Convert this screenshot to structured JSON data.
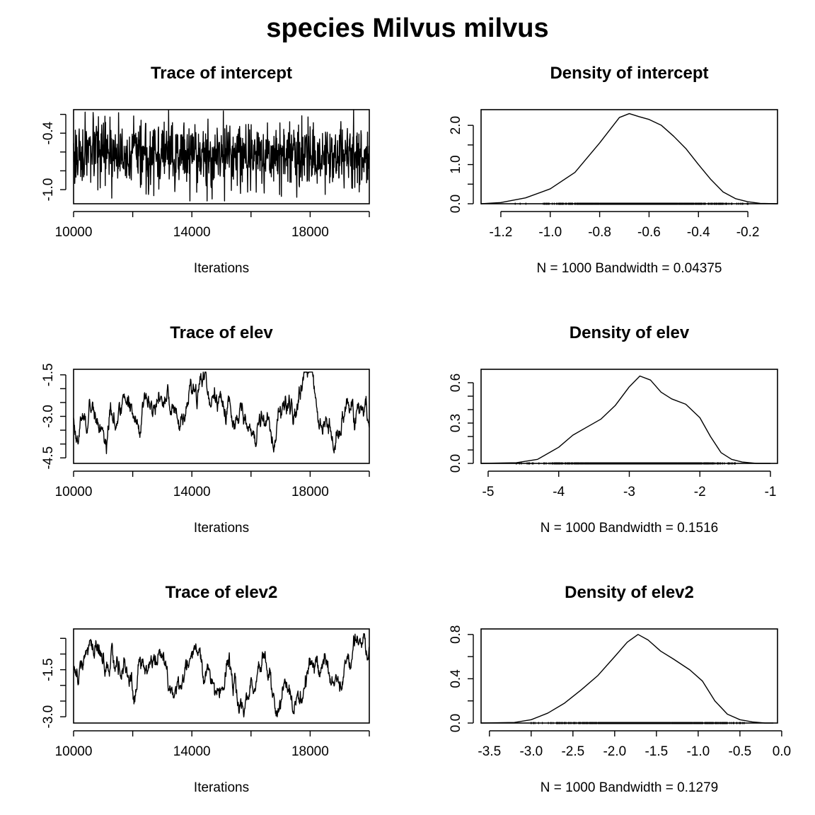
{
  "figure_title": "species Milvus milvus",
  "chart_data": [
    {
      "id": "trace-intercept",
      "type": "line",
      "title": "Trace of intercept",
      "xlabel": "Iterations",
      "xlim": [
        10000,
        20000
      ],
      "ylim": [
        -1.15,
        -0.15
      ],
      "xticks": [
        10000,
        12000,
        14000,
        16000,
        18000,
        20000
      ],
      "xtick_labels": [
        "10000",
        "",
        "14000",
        "",
        "18000",
        ""
      ],
      "yticks": [
        -1.0,
        -0.8,
        -0.6,
        -0.4,
        -0.2
      ],
      "ytick_labels": [
        "-1.0",
        "",
        "",
        "-0.4",
        ""
      ],
      "trace": {
        "n": 1000,
        "mean": -0.63,
        "sd": 0.17,
        "ar": 0.05,
        "min": -1.12,
        "max": -0.15
      }
    },
    {
      "id": "density-intercept",
      "type": "line",
      "title": "Density of intercept",
      "xlabel": "N = 1000   Bandwidth = 0.04375",
      "xlim": [
        -1.28,
        -0.08
      ],
      "ylim": [
        0,
        2.4
      ],
      "xticks": [
        -1.2,
        -1.0,
        -0.8,
        -0.6,
        -0.4,
        -0.2
      ],
      "xtick_labels": [
        "-1.2",
        "-1.0",
        "-0.8",
        "-0.6",
        "-0.4",
        "-0.2"
      ],
      "yticks": [
        0,
        0.5,
        1.0,
        1.5,
        2.0
      ],
      "ytick_labels": [
        "0.0",
        "",
        "1.0",
        "",
        "2.0"
      ],
      "curve": {
        "x": [
          -1.28,
          -1.2,
          -1.1,
          -1.0,
          -0.9,
          -0.8,
          -0.72,
          -0.68,
          -0.64,
          -0.6,
          -0.55,
          -0.5,
          -0.45,
          -0.4,
          -0.35,
          -0.3,
          -0.25,
          -0.2,
          -0.15,
          -0.08
        ],
        "y": [
          0.0,
          0.03,
          0.15,
          0.38,
          0.8,
          1.55,
          2.2,
          2.3,
          2.22,
          2.15,
          2.0,
          1.72,
          1.4,
          1.0,
          0.62,
          0.3,
          0.13,
          0.05,
          0.01,
          0.0
        ]
      },
      "rug": {
        "n": 1000,
        "mean": -0.63,
        "sd": 0.16,
        "min": -1.2,
        "max": -0.2
      }
    },
    {
      "id": "trace-elev",
      "type": "line",
      "title": "Trace of elev",
      "xlabel": "Iterations",
      "xlim": [
        10000,
        20000
      ],
      "ylim": [
        -4.7,
        -1.3
      ],
      "xticks": [
        10000,
        12000,
        14000,
        16000,
        18000,
        20000
      ],
      "xtick_labels": [
        "10000",
        "",
        "14000",
        "",
        "18000",
        ""
      ],
      "yticks": [
        -4.5,
        -4.0,
        -3.5,
        -3.0,
        -2.5,
        -2.0,
        -1.5
      ],
      "ytick_labels": [
        "-4.5",
        "",
        "",
        "-3.0",
        "",
        "",
        "-1.5"
      ],
      "trace": {
        "n": 1000,
        "mean": -2.9,
        "sd": 0.6,
        "ar": 0.97,
        "min": -4.6,
        "max": -1.4
      }
    },
    {
      "id": "density-elev",
      "type": "line",
      "title": "Density of elev",
      "xlabel": "N = 1000   Bandwidth = 0.1516",
      "xlim": [
        -5.1,
        -0.9
      ],
      "ylim": [
        0,
        0.7
      ],
      "xticks": [
        -5,
        -4,
        -3,
        -2,
        -1
      ],
      "xtick_labels": [
        "-5",
        "-4",
        "-3",
        "-2",
        "-1"
      ],
      "yticks": [
        0,
        0.1,
        0.2,
        0.3,
        0.4,
        0.5,
        0.6
      ],
      "ytick_labels": [
        "0.0",
        "",
        "",
        "0.3",
        "",
        "",
        "0.6"
      ],
      "curve": {
        "x": [
          -5.1,
          -4.6,
          -4.3,
          -4.0,
          -3.8,
          -3.6,
          -3.4,
          -3.2,
          -3.0,
          -2.85,
          -2.7,
          -2.55,
          -2.4,
          -2.2,
          -2.0,
          -1.85,
          -1.7,
          -1.55,
          -1.4,
          -1.2,
          -1.0
        ],
        "y": [
          0.0,
          0.005,
          0.03,
          0.12,
          0.21,
          0.27,
          0.33,
          0.43,
          0.57,
          0.65,
          0.62,
          0.53,
          0.48,
          0.44,
          0.34,
          0.2,
          0.08,
          0.03,
          0.01,
          0.0,
          0.0
        ]
      },
      "rug": {
        "n": 1000,
        "mean": -2.9,
        "sd": 0.6,
        "min": -4.6,
        "max": -1.5
      }
    },
    {
      "id": "trace-elev2",
      "type": "line",
      "title": "Trace of elev2",
      "xlabel": "Iterations",
      "xlim": [
        10000,
        20000
      ],
      "ylim": [
        -3.2,
        -0.2
      ],
      "xticks": [
        10000,
        12000,
        14000,
        16000,
        18000,
        20000
      ],
      "xtick_labels": [
        "10000",
        "",
        "14000",
        "",
        "18000",
        ""
      ],
      "yticks": [
        -3.0,
        -2.5,
        -2.0,
        -1.5,
        -1.0,
        -0.5
      ],
      "ytick_labels": [
        "-3.0",
        "",
        "",
        "-1.5",
        "",
        ""
      ],
      "trace": {
        "n": 1000,
        "mean": -1.65,
        "sd": 0.5,
        "ar": 0.97,
        "min": -3.15,
        "max": -0.35
      }
    },
    {
      "id": "density-elev2",
      "type": "line",
      "title": "Density of elev2",
      "xlabel": "N = 1000   Bandwidth = 0.1279",
      "xlim": [
        -3.6,
        -0.05
      ],
      "ylim": [
        0,
        0.85
      ],
      "xticks": [
        -3.5,
        -3.0,
        -2.5,
        -2.0,
        -1.5,
        -1.0,
        -0.5,
        0.0
      ],
      "xtick_labels": [
        "-3.5",
        "-3.0",
        "-2.5",
        "-2.0",
        "-1.5",
        "-1.0",
        "-0.5",
        "0.0"
      ],
      "yticks": [
        0,
        0.2,
        0.4,
        0.6,
        0.8
      ],
      "ytick_labels": [
        "0.0",
        "",
        "0.4",
        "",
        "0.8"
      ],
      "curve": {
        "x": [
          -3.6,
          -3.2,
          -3.0,
          -2.8,
          -2.6,
          -2.4,
          -2.2,
          -2.0,
          -1.85,
          -1.72,
          -1.6,
          -1.45,
          -1.3,
          -1.1,
          -0.95,
          -0.8,
          -0.65,
          -0.5,
          -0.35,
          -0.2,
          -0.1
        ],
        "y": [
          0.0,
          0.005,
          0.03,
          0.09,
          0.18,
          0.3,
          0.43,
          0.6,
          0.73,
          0.8,
          0.75,
          0.65,
          0.58,
          0.48,
          0.38,
          0.2,
          0.08,
          0.03,
          0.01,
          0.0,
          0.0
        ]
      },
      "rug": {
        "n": 1000,
        "mean": -1.62,
        "sd": 0.5,
        "min": -3.0,
        "max": -0.45
      }
    }
  ]
}
